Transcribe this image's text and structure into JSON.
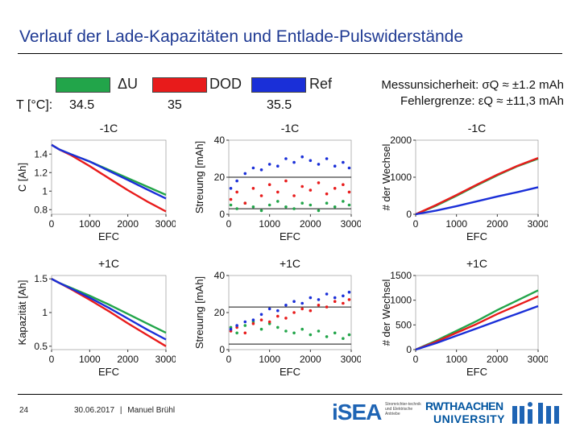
{
  "title": "Verlauf der Lade-Kapazitäten und Entlade-Pulswiderstände",
  "legend": [
    {
      "label": "ΔU",
      "color": "#22a54a"
    },
    {
      "label": "DOD",
      "color": "#e81b1b"
    },
    {
      "label": "Ref",
      "color": "#1a2fd8"
    }
  ],
  "temperature": {
    "label": "T [°C]:",
    "values": [
      "34.5",
      "35",
      "35.5"
    ]
  },
  "info": {
    "line1": "Messunsicherheit: σQ ≈ ±1.2 mAh",
    "line2": "Fehlergrenze: εQ ≈ ±11,3 mAh"
  },
  "footer": {
    "page_number": "24",
    "date": "30.06.2017",
    "separator": "|",
    "author": "Manuel Brühl",
    "logo_isea": "iSEA",
    "logo_isea_sub": "Stromrichter-technik und Elektrische Antriebe",
    "logo_rwth_1": "RWTHAACHEN",
    "logo_rwth_2": "UNIVERSITY"
  },
  "chart_data": [
    {
      "id": "cap-minus",
      "type": "line",
      "title": "-1C",
      "xlabel": "EFC",
      "ylabel": "C [Ah]",
      "xlim": [
        0,
        3000
      ],
      "ylim": [
        0.75,
        1.55
      ],
      "xticks": [
        0,
        1000,
        2000,
        3000
      ],
      "yticks": [
        0.8,
        1,
        1.2,
        1.4
      ],
      "series": [
        {
          "legend_ref": 0,
          "x": [
            0,
            200,
            500,
            1000,
            1500,
            2000,
            2500,
            3000
          ],
          "y": [
            1.5,
            1.45,
            1.4,
            1.32,
            1.23,
            1.14,
            1.05,
            0.96
          ]
        },
        {
          "legend_ref": 1,
          "x": [
            0,
            200,
            500,
            1000,
            1500,
            2000,
            2500,
            3000
          ],
          "y": [
            1.5,
            1.45,
            1.39,
            1.27,
            1.14,
            1.01,
            0.89,
            0.78
          ]
        },
        {
          "legend_ref": 2,
          "x": [
            0,
            200,
            500,
            1000,
            1500,
            2000,
            2500,
            3000
          ],
          "y": [
            1.5,
            1.45,
            1.4,
            1.32,
            1.22,
            1.12,
            1.02,
            0.92
          ]
        }
      ]
    },
    {
      "id": "str-minus",
      "type": "scatter",
      "title": "-1C",
      "xlabel": "EFC",
      "ylabel": "Streuung [mAh]",
      "xlim": [
        0,
        3000
      ],
      "ylim": [
        0,
        40
      ],
      "xticks": [
        0,
        1000,
        2000,
        3000
      ],
      "yticks": [
        0,
        20,
        40
      ],
      "hlines": [
        3,
        20
      ],
      "series": [
        {
          "legend_ref": 0,
          "x": [
            50,
            200,
            400,
            600,
            800,
            1000,
            1200,
            1400,
            1600,
            1800,
            2000,
            2200,
            2400,
            2600,
            2800,
            2950
          ],
          "y": [
            5,
            3,
            6,
            4,
            2,
            5,
            7,
            4,
            3,
            6,
            5,
            2,
            6,
            4,
            7,
            5
          ]
        },
        {
          "legend_ref": 1,
          "x": [
            50,
            200,
            400,
            600,
            800,
            1000,
            1200,
            1400,
            1600,
            1800,
            2000,
            2200,
            2400,
            2600,
            2800,
            2950
          ],
          "y": [
            8,
            12,
            6,
            14,
            10,
            16,
            12,
            18,
            10,
            15,
            13,
            17,
            11,
            14,
            16,
            12
          ]
        },
        {
          "legend_ref": 2,
          "x": [
            50,
            200,
            400,
            600,
            800,
            1000,
            1200,
            1400,
            1600,
            1800,
            2000,
            2200,
            2400,
            2600,
            2800,
            2950
          ],
          "y": [
            14,
            18,
            22,
            25,
            24,
            27,
            26,
            30,
            28,
            31,
            29,
            27,
            30,
            26,
            28,
            25
          ]
        }
      ]
    },
    {
      "id": "wech-minus",
      "type": "line",
      "title": "-1C",
      "xlabel": "EFC",
      "ylabel": "# der Wechsel",
      "xlim": [
        0,
        3000
      ],
      "ylim": [
        0,
        2000
      ],
      "xticks": [
        0,
        1000,
        2000,
        3000
      ],
      "yticks": [
        0,
        1000,
        2000
      ],
      "series": [
        {
          "legend_ref": 0,
          "x": [
            0,
            500,
            1000,
            1500,
            2000,
            2500,
            3000
          ],
          "y": [
            0,
            230,
            500,
            780,
            1050,
            1300,
            1500
          ]
        },
        {
          "legend_ref": 1,
          "x": [
            0,
            500,
            1000,
            1500,
            2000,
            2500,
            3000
          ],
          "y": [
            0,
            250,
            520,
            800,
            1070,
            1310,
            1520
          ]
        },
        {
          "legend_ref": 2,
          "x": [
            0,
            500,
            1000,
            1500,
            2000,
            2500,
            3000
          ],
          "y": [
            0,
            100,
            220,
            350,
            480,
            600,
            730
          ]
        }
      ]
    },
    {
      "id": "cap-plus",
      "type": "line",
      "title": "+1C",
      "xlabel": "EFC",
      "ylabel": "Kapazität [Ah]",
      "xlim": [
        0,
        3000
      ],
      "ylim": [
        0.45,
        1.55
      ],
      "xticks": [
        0,
        1000,
        2000,
        3000
      ],
      "yticks": [
        0.5,
        1,
        1.5
      ],
      "series": [
        {
          "legend_ref": 0,
          "x": [
            0,
            200,
            500,
            1000,
            1500,
            2000,
            2500,
            3000
          ],
          "y": [
            1.5,
            1.44,
            1.37,
            1.25,
            1.12,
            0.98,
            0.84,
            0.7
          ]
        },
        {
          "legend_ref": 1,
          "x": [
            0,
            200,
            500,
            1000,
            1500,
            2000,
            2500,
            3000
          ],
          "y": [
            1.5,
            1.44,
            1.35,
            1.19,
            1.02,
            0.84,
            0.67,
            0.5
          ]
        },
        {
          "legend_ref": 2,
          "x": [
            0,
            200,
            500,
            1000,
            1500,
            2000,
            2500,
            3000
          ],
          "y": [
            1.5,
            1.44,
            1.36,
            1.22,
            1.07,
            0.91,
            0.75,
            0.6
          ]
        }
      ]
    },
    {
      "id": "str-plus",
      "type": "scatter",
      "title": "+1C",
      "xlabel": "EFC",
      "ylabel": "Streuung [mAh]",
      "xlim": [
        0,
        3000
      ],
      "ylim": [
        0,
        40
      ],
      "xticks": [
        0,
        1000,
        2000,
        3000
      ],
      "yticks": [
        0,
        20,
        40
      ],
      "hlines": [
        3,
        23
      ],
      "series": [
        {
          "legend_ref": 0,
          "x": [
            50,
            200,
            400,
            600,
            800,
            1000,
            1200,
            1400,
            1600,
            1800,
            2000,
            2200,
            2400,
            2600,
            2800,
            2950
          ],
          "y": [
            12,
            9,
            13,
            15,
            11,
            14,
            12,
            10,
            9,
            11,
            8,
            10,
            7,
            9,
            6,
            8
          ]
        },
        {
          "legend_ref": 1,
          "x": [
            50,
            200,
            400,
            600,
            800,
            1000,
            1200,
            1400,
            1600,
            1800,
            2000,
            2200,
            2400,
            2600,
            2800,
            2950
          ],
          "y": [
            10,
            12,
            9,
            14,
            16,
            15,
            18,
            17,
            20,
            22,
            21,
            24,
            23,
            26,
            25,
            27
          ]
        },
        {
          "legend_ref": 2,
          "x": [
            50,
            200,
            400,
            600,
            800,
            1000,
            1200,
            1400,
            1600,
            1800,
            2000,
            2200,
            2400,
            2600,
            2800,
            2950
          ],
          "y": [
            11,
            13,
            15,
            16,
            19,
            22,
            21,
            24,
            26,
            25,
            28,
            27,
            30,
            28,
            29,
            31
          ]
        }
      ]
    },
    {
      "id": "wech-plus",
      "type": "line",
      "title": "+1C",
      "xlabel": "EFC",
      "ylabel": "# der Wechsel",
      "xlim": [
        0,
        3000
      ],
      "ylim": [
        0,
        1500
      ],
      "xticks": [
        0,
        1000,
        2000,
        3000
      ],
      "yticks": [
        0,
        500,
        1000,
        1500
      ],
      "series": [
        {
          "legend_ref": 0,
          "x": [
            0,
            500,
            1000,
            1500,
            2000,
            2500,
            3000
          ],
          "y": [
            0,
            180,
            380,
            580,
            800,
            1000,
            1200
          ]
        },
        {
          "legend_ref": 1,
          "x": [
            0,
            500,
            1000,
            1500,
            2000,
            2500,
            3000
          ],
          "y": [
            0,
            160,
            340,
            520,
            720,
            900,
            1080
          ]
        },
        {
          "legend_ref": 2,
          "x": [
            0,
            500,
            1000,
            1500,
            2000,
            2500,
            3000
          ],
          "y": [
            0,
            130,
            280,
            430,
            580,
            730,
            880
          ]
        }
      ]
    }
  ]
}
